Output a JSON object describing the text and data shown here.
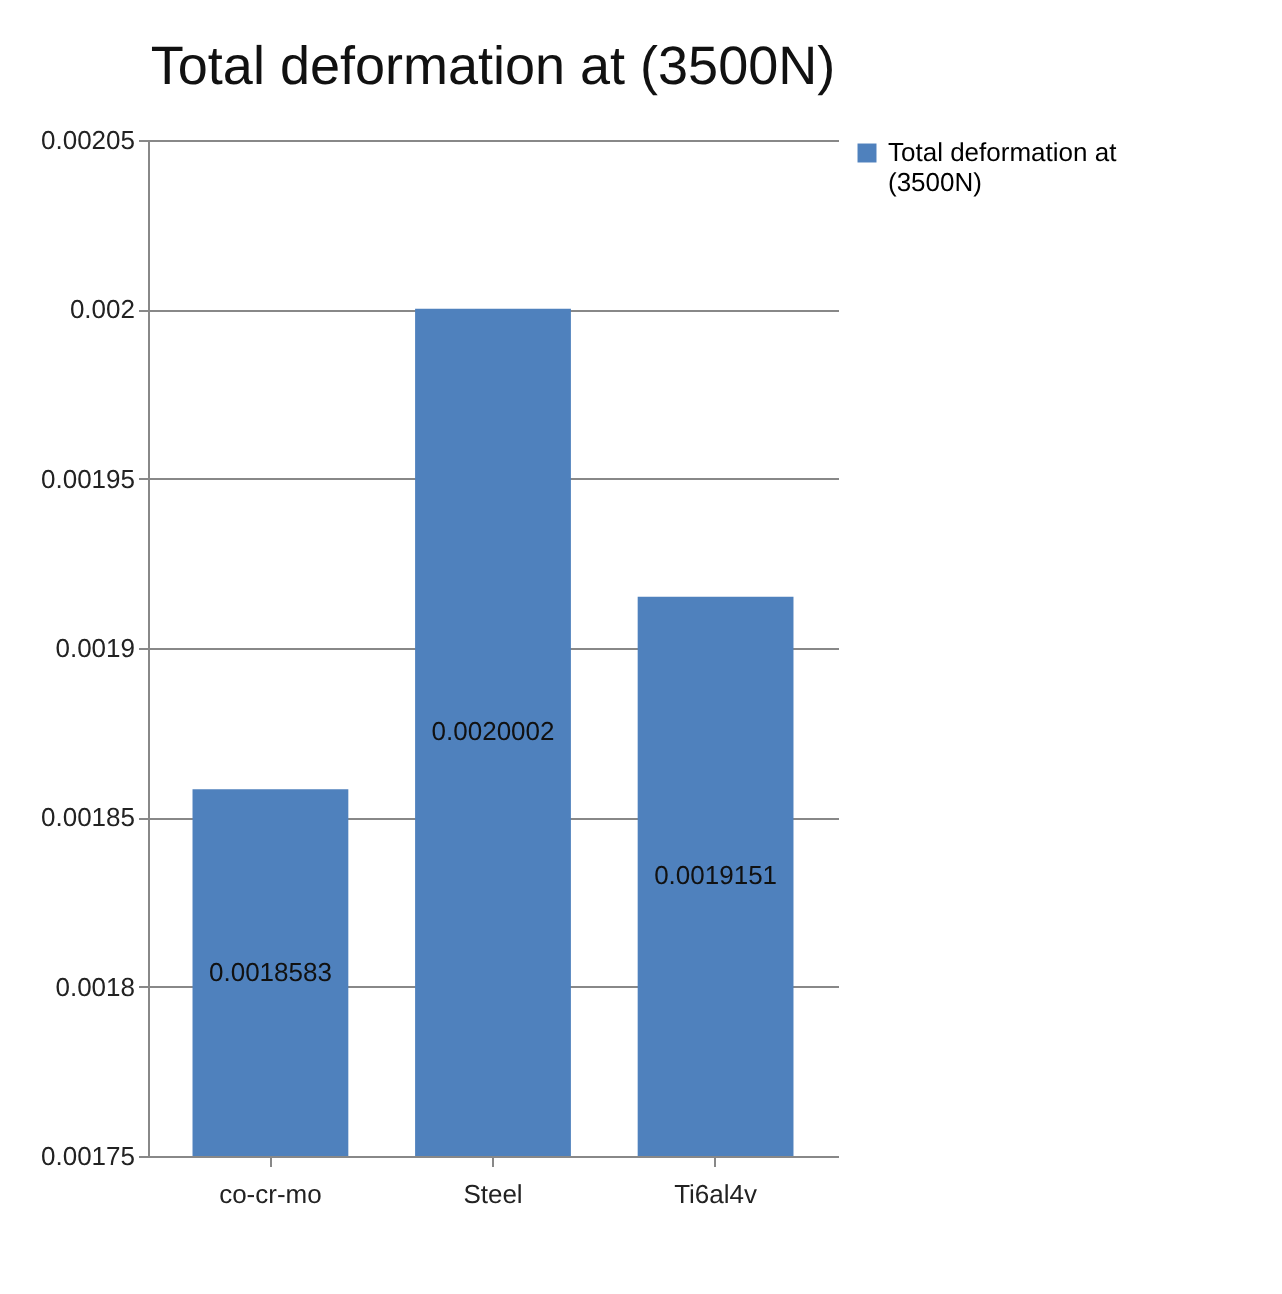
{
  "chart_data": {
    "type": "bar",
    "title": "Total deformation  at (3500N)",
    "categories": [
      "co-cr-mo",
      "Steel",
      "Ti6al4v"
    ],
    "series": [
      {
        "name": "Total deformation  at (3500N)",
        "color": "#4f81bd",
        "values": [
          0.0018583,
          0.0020002,
          0.0019151
        ]
      }
    ],
    "ylim": [
      0.00175,
      0.00205
    ],
    "yticks": [
      0.00175,
      0.0018,
      0.00185,
      0.0019,
      0.00195,
      0.002,
      0.00205
    ],
    "grid": "y",
    "legend": "right",
    "data_labels": true
  }
}
